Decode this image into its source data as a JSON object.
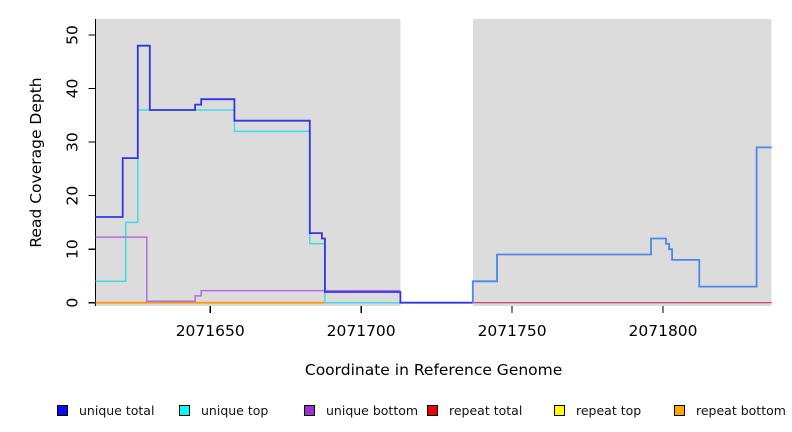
{
  "chart_data": {
    "type": "line",
    "subtype": "step-coverage",
    "title": "",
    "xlabel": "Coordinate in Reference Genome",
    "ylabel": "Read Coverage Depth",
    "xlim": [
      2071612,
      2071836
    ],
    "ylim": [
      0,
      52
    ],
    "xticks": [
      2071650,
      2071700,
      2071750,
      2071800
    ],
    "yticks": [
      0,
      10,
      20,
      30,
      40,
      50
    ],
    "grid": false,
    "plot_bg_color": "#dcdcdc",
    "no_data_region": {
      "x0": 2071713,
      "x1": 2071737,
      "color": "#ffffff"
    },
    "axis_color": "#000000",
    "series": [
      {
        "id": "repeat-total",
        "name": "repeat total",
        "color": "#c8345a",
        "legend_color": "#ee0000",
        "width": 1.2,
        "points": [
          [
            2071612,
            0
          ]
        ],
        "x_end": 2071836
      },
      {
        "id": "repeat-top",
        "name": "repeat top",
        "color": "#e4de48",
        "legend_color": "#ffff00",
        "width": 1.3,
        "points": [
          [
            2071612,
            0
          ]
        ],
        "x_end": 2071713
      },
      {
        "id": "unique-top",
        "name": "unique top",
        "color": "#3edde6",
        "legend_color": "#00ffff",
        "width": 1.5,
        "points": [
          [
            2071612,
            4
          ],
          [
            2071622,
            15
          ],
          [
            2071626,
            36
          ],
          [
            2071658,
            32
          ],
          [
            2071683,
            11
          ],
          [
            2071688,
            0
          ]
        ],
        "x_end": 2071713
      },
      {
        "id": "repeat-bottom",
        "name": "repeat bottom",
        "color": "#ff9612",
        "legend_color": "#ffa500",
        "width": 1.9,
        "points": [
          [
            2071612,
            0
          ]
        ],
        "x_end": 2071688
      },
      {
        "id": "unique-bottom",
        "name": "unique bottom",
        "color": "#b06ede",
        "legend_color": "#9a32cd",
        "width": 1.5,
        "dy": -1.4,
        "points": [
          [
            2071612,
            12
          ],
          [
            2071629,
            0
          ],
          [
            2071645,
            1
          ],
          [
            2071647,
            2
          ]
        ],
        "x_end": 2071713
      },
      {
        "id": "unique-total",
        "name": "unique total",
        "color": "#3335e2",
        "color_after": "#4d86ec",
        "split_x": 2071737,
        "legend_color": "#0b0bee",
        "width": 1.8,
        "points": [
          [
            2071612,
            16
          ],
          [
            2071621,
            27
          ],
          [
            2071626,
            48
          ],
          [
            2071630,
            36
          ],
          [
            2071645,
            37
          ],
          [
            2071647,
            38
          ],
          [
            2071658,
            34
          ],
          [
            2071683,
            13
          ],
          [
            2071687,
            12
          ],
          [
            2071688,
            2
          ],
          [
            2071713,
            0
          ],
          [
            2071737,
            4
          ],
          [
            2071745,
            9
          ],
          [
            2071796,
            12
          ],
          [
            2071801,
            11
          ],
          [
            2071802,
            10
          ],
          [
            2071803,
            8
          ],
          [
            2071812,
            3
          ],
          [
            2071831,
            29
          ]
        ],
        "x_end": 2071836
      }
    ],
    "legend": [
      {
        "id": "unique-total",
        "label": "unique total",
        "color": "#0b0bee"
      },
      {
        "id": "unique-top",
        "label": "unique top",
        "color": "#00ffff"
      },
      {
        "id": "unique-bottom",
        "label": "unique bottom",
        "color": "#9a32cd"
      },
      {
        "id": "repeat-total",
        "label": "repeat total",
        "color": "#ee0000"
      },
      {
        "id": "repeat-top",
        "label": "repeat top",
        "color": "#ffff00"
      },
      {
        "id": "repeat-bottom",
        "label": "repeat bottom",
        "color": "#ffa500"
      }
    ],
    "legend_position": "bottom"
  }
}
